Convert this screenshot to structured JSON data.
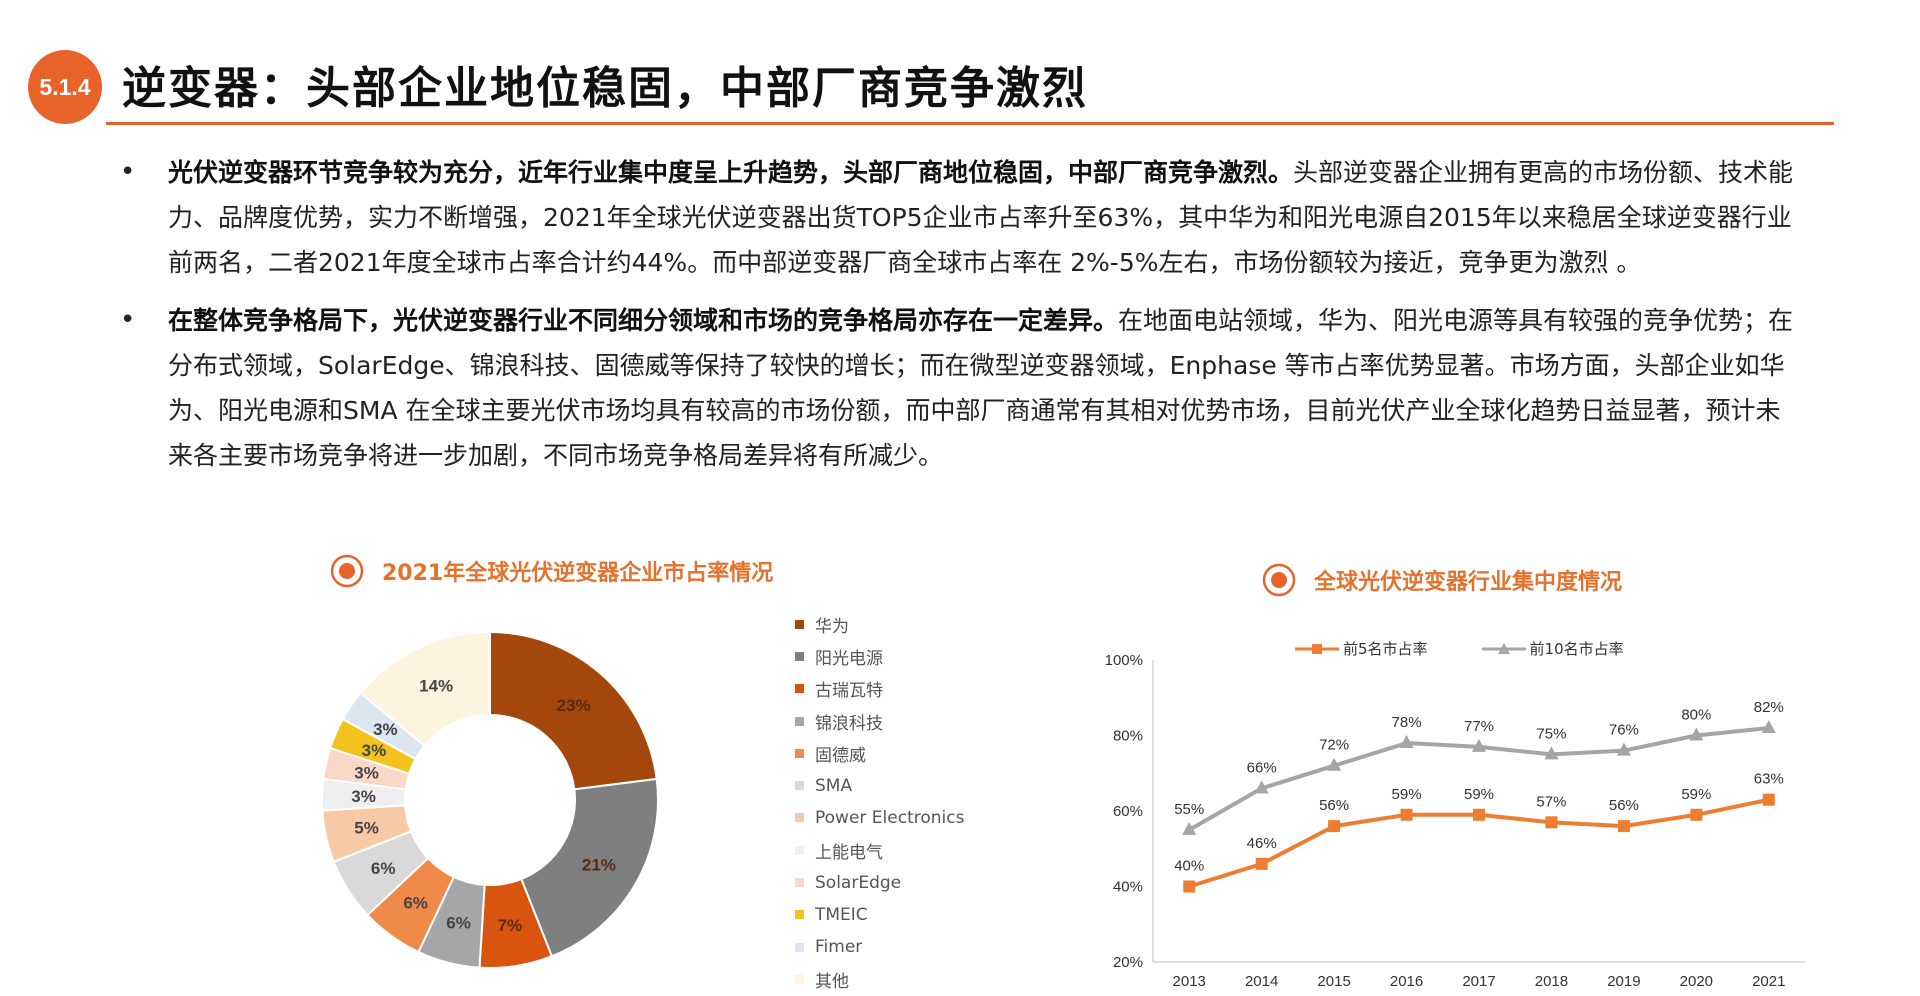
{
  "header": {
    "section_number": "5.1.4",
    "title": "逆变器：头部企业地位稳固，中部厂商竞争激烈"
  },
  "bullets": [
    {
      "marker": "•",
      "lead": "光伏逆变器环节竞争较为充分，近年行业集中度呈上升趋势，头部厂商地位稳固，中部厂商竞争激烈。",
      "text": "头部逆变器企业拥有更高的市场份额、技术能力、品牌度优势，实力不断增强，2021年全球光伏逆变器出货TOP5企业市占率升至63%，其中华为和阳光电源自2015年以来稳居全球逆变器行业前两名，二者2021年度全球市占率合计约44%。而中部逆变器厂商全球市占率在 2%-5%左右，市场份额较为接近，竞争更为激烈 。"
    },
    {
      "marker": "•",
      "lead": "在整体竞争格局下，光伏逆变器行业不同细分领域和市场的竞争格局亦存在一定差异。",
      "text": "在地面电站领域，华为、阳光电源等具有较强的竞争优势；在分布式领域，SolarEdge、锦浪科技、固德威等保持了较快的增长；而在微型逆变器领域，Enphase 等市占率优势显著。市场方面，头部企业如华为、阳光电源和SMA 在全球主要光伏市场均具有较高的市场份额，而中部厂商通常有其相对优势市场，目前光伏产业全球化趋势日益显著，预计未来各主要市场竞争将进一步加剧，不同市场竞争格局差异将有所减少。"
    }
  ],
  "left_chart_title": "2021年全球光伏逆变器企业市占率情况",
  "right_chart_title": "全球光伏逆变器行业集中度情况",
  "colors": {
    "accent": "#e8632a",
    "title_orange": "#e4722c"
  },
  "chart_data": [
    {
      "type": "pie",
      "donut": true,
      "title": "2021年全球光伏逆变器企业市占率情况",
      "legend_position": "right",
      "slices": [
        {
          "name": "华为",
          "value": 23,
          "label": "23%",
          "color": "#a5460c"
        },
        {
          "name": "阳光电源",
          "value": 21,
          "label": "21%",
          "color": "#7f7f7f"
        },
        {
          "name": "古瑞瓦特",
          "value": 7,
          "label": "7%",
          "color": "#d9540f"
        },
        {
          "name": "锦浪科技",
          "value": 6,
          "label": "6%",
          "color": "#a6a6a6"
        },
        {
          "name": "固德威",
          "value": 6,
          "label": "6%",
          "color": "#f08a49"
        },
        {
          "name": "SMA",
          "value": 6,
          "label": "6%",
          "color": "#d9d9d9"
        },
        {
          "name": "Power Electronics",
          "value": 5,
          "label": "5%",
          "color": "#f8c9a6"
        },
        {
          "name": "上能电气",
          "value": 3,
          "label": "3%",
          "color": "#efefef"
        },
        {
          "name": "SolarEdge",
          "value": 3,
          "label": "3%",
          "color": "#fad8c7"
        },
        {
          "name": "TMEIC",
          "value": 3,
          "label": "3%",
          "color": "#f4c21c"
        },
        {
          "name": "Fimer",
          "value": 3,
          "label": "3%",
          "color": "#dbe6f1"
        },
        {
          "name": "其他",
          "value": 14,
          "label": "14%",
          "color": "#fdf3df"
        }
      ]
    },
    {
      "type": "line",
      "title": "全球光伏逆变器行业集中度情况",
      "legend_position": "top",
      "x": [
        "2013",
        "2014",
        "2015",
        "2016",
        "2017",
        "2018",
        "2019",
        "2020",
        "2021"
      ],
      "y_ticks": [
        "20%",
        "40%",
        "60%",
        "80%",
        "100%"
      ],
      "ylim": [
        20,
        100
      ],
      "series": [
        {
          "name": "前5名市占率",
          "color": "#ed7d31",
          "values": [
            40,
            46,
            56,
            59,
            59,
            57,
            56,
            59,
            63
          ],
          "labels": [
            "40%",
            "46%",
            "56%",
            "59%",
            "59%",
            "57%",
            "56%",
            "59%",
            "63%"
          ]
        },
        {
          "name": "前10名市占率",
          "color": "#a5a5a5",
          "values": [
            55,
            66,
            72,
            78,
            77,
            75,
            76,
            80,
            82
          ],
          "labels": [
            "55%",
            "66%",
            "72%",
            "78%",
            "77%",
            "75%",
            "76%",
            "80%",
            "82%"
          ]
        }
      ]
    }
  ]
}
